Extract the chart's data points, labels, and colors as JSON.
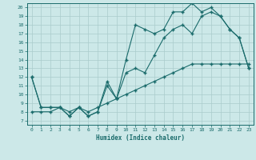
{
  "xlabel": "Humidex (Indice chaleur)",
  "bg_color": "#cce8e8",
  "grid_color": "#aacccc",
  "line_color": "#1a6b6b",
  "xlim": [
    -0.5,
    23.5
  ],
  "ylim": [
    6.5,
    20.5
  ],
  "xticks": [
    0,
    1,
    2,
    3,
    4,
    5,
    6,
    7,
    8,
    9,
    10,
    11,
    12,
    13,
    14,
    15,
    16,
    17,
    18,
    19,
    20,
    21,
    22,
    23
  ],
  "yticks": [
    7,
    8,
    9,
    10,
    11,
    12,
    13,
    14,
    15,
    16,
    17,
    18,
    19,
    20
  ],
  "line1_x": [
    0,
    1,
    2,
    3,
    4,
    5,
    6,
    7,
    8,
    9,
    10,
    11,
    12,
    13,
    14,
    15,
    16,
    17,
    18,
    19,
    20,
    21,
    22,
    23
  ],
  "line1_y": [
    8.0,
    8.0,
    8.0,
    8.5,
    8.0,
    8.5,
    8.0,
    8.5,
    9.0,
    9.5,
    10.0,
    10.5,
    11.0,
    11.5,
    12.0,
    12.5,
    13.0,
    13.5,
    13.5,
    13.5,
    13.5,
    13.5,
    13.5,
    13.5
  ],
  "line2_x": [
    0,
    1,
    2,
    3,
    4,
    5,
    6,
    7,
    8,
    9,
    10,
    11,
    12,
    13,
    14,
    15,
    16,
    17,
    18,
    19,
    20,
    21,
    22,
    23
  ],
  "line2_y": [
    12.0,
    8.5,
    8.5,
    8.5,
    7.5,
    8.5,
    7.5,
    8.0,
    11.0,
    9.5,
    12.5,
    13.0,
    12.5,
    14.5,
    16.5,
    17.5,
    18.0,
    17.0,
    19.0,
    19.5,
    19.0,
    17.5,
    16.5,
    13.0
  ],
  "line3_x": [
    0,
    1,
    2,
    3,
    4,
    5,
    6,
    7,
    8,
    9,
    10,
    11,
    12,
    13,
    14,
    15,
    16,
    17,
    18,
    19,
    20,
    21,
    22,
    23
  ],
  "line3_y": [
    12.0,
    8.5,
    8.5,
    8.5,
    7.5,
    8.5,
    7.5,
    8.0,
    11.5,
    9.5,
    14.0,
    18.0,
    17.5,
    17.0,
    17.5,
    19.5,
    19.5,
    20.5,
    19.5,
    20.0,
    19.0,
    17.5,
    16.5,
    13.0
  ]
}
